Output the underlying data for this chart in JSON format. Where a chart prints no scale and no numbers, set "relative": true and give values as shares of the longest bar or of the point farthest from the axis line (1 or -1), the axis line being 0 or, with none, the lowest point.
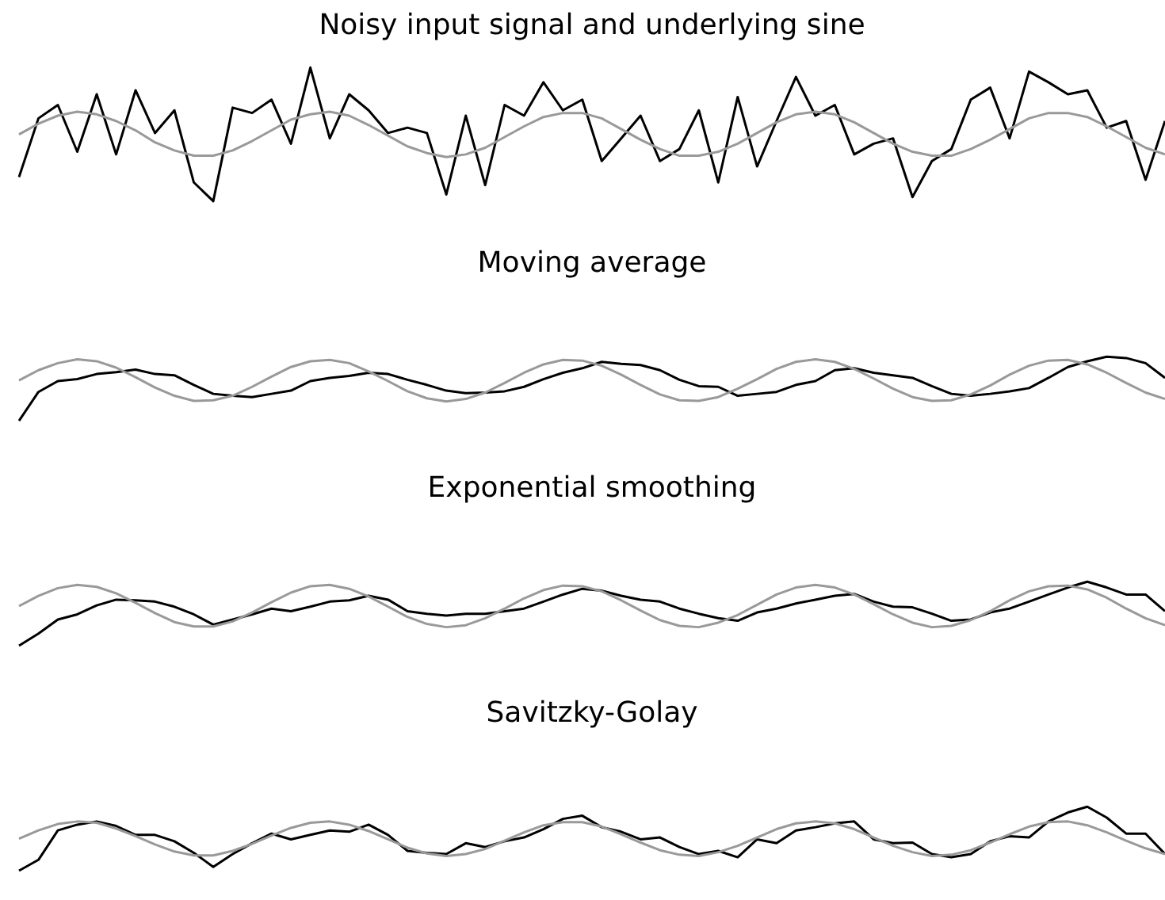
{
  "chart_data": [
    {
      "type": "line",
      "title": "Noisy input signal and underlying sine",
      "relative": true,
      "categories": [
        null,
        null,
        null,
        null,
        null,
        null,
        null,
        null,
        null,
        null,
        null,
        null,
        null,
        null,
        null,
        null,
        null,
        null,
        null,
        null,
        null,
        null,
        null,
        null,
        null,
        null,
        null,
        null,
        null,
        null,
        null,
        null,
        null,
        null,
        null,
        null,
        null,
        null,
        null,
        null,
        null,
        null,
        null,
        null,
        null,
        null,
        null,
        null,
        null,
        null,
        null,
        null,
        null,
        null,
        null,
        null,
        null,
        null,
        null,
        null
      ],
      "series": [
        {
          "color": "#999999",
          "values": [
            0.5,
            0.58,
            0.64,
            0.67,
            0.65,
            0.6,
            0.53,
            0.44,
            0.38,
            0.34,
            0.34,
            0.38,
            0.45,
            0.53,
            0.61,
            0.65,
            0.67,
            0.64,
            0.57,
            0.49,
            0.41,
            0.36,
            0.33,
            0.35,
            0.4,
            0.48,
            0.56,
            0.63,
            0.66,
            0.66,
            0.62,
            0.54,
            0.46,
            0.39,
            0.34,
            0.34,
            0.37,
            0.43,
            0.51,
            0.59,
            0.65,
            0.67,
            0.65,
            0.59,
            0.51,
            0.43,
            0.37,
            0.34,
            0.34,
            0.39,
            0.46,
            0.54,
            0.62,
            0.66,
            0.66,
            0.63,
            0.56,
            0.48,
            0.4,
            0.35
          ]
        },
        {
          "color": "#000000",
          "values": [
            0.18,
            0.62,
            0.72,
            0.37,
            0.8,
            0.35,
            0.83,
            0.51,
            0.68,
            0.14,
            0,
            0.7,
            0.66,
            0.76,
            0.43,
            1,
            0.47,
            0.8,
            0.68,
            0.51,
            0.55,
            0.51,
            0.05,
            0.64,
            0.12,
            0.72,
            0.64,
            0.89,
            0.68,
            0.76,
            0.3,
            0.47,
            0.64,
            0.3,
            0.39,
            0.68,
            0.14,
            0.78,
            0.26,
            0.6,
            0.93,
            0.64,
            0.72,
            0.35,
            0.43,
            0.47,
            0.03,
            0.3,
            0.39,
            0.76,
            0.85,
            0.47,
            0.97,
            0.89,
            0.8,
            0.83,
            0.55,
            0.6,
            0.16,
            0.6
          ]
        }
      ]
    },
    {
      "type": "line",
      "title": "Moving average",
      "relative": true,
      "categories": [
        null,
        null,
        null,
        null,
        null,
        null,
        null,
        null,
        null,
        null,
        null,
        null,
        null,
        null,
        null,
        null,
        null,
        null,
        null,
        null,
        null,
        null,
        null,
        null,
        null,
        null,
        null,
        null,
        null,
        null,
        null,
        null,
        null,
        null,
        null,
        null,
        null,
        null,
        null,
        null,
        null,
        null,
        null,
        null,
        null,
        null,
        null,
        null,
        null,
        null,
        null,
        null,
        null,
        null,
        null,
        null,
        null,
        null,
        null,
        null
      ],
      "series": [
        {
          "color": "#999999",
          "values": [
            0.63,
            0.79,
            0.9,
            0.96,
            0.93,
            0.83,
            0.68,
            0.52,
            0.39,
            0.31,
            0.32,
            0.39,
            0.53,
            0.69,
            0.84,
            0.93,
            0.95,
            0.9,
            0.77,
            0.62,
            0.46,
            0.35,
            0.3,
            0.34,
            0.44,
            0.59,
            0.75,
            0.88,
            0.95,
            0.94,
            0.86,
            0.72,
            0.56,
            0.41,
            0.32,
            0.31,
            0.37,
            0.5,
            0.65,
            0.81,
            0.92,
            0.96,
            0.92,
            0.81,
            0.66,
            0.5,
            0.37,
            0.31,
            0.32,
            0.41,
            0.55,
            0.72,
            0.86,
            0.94,
            0.95,
            0.88,
            0.75,
            0.59,
            0.44,
            0.34
          ]
        },
        {
          "color": "#000000",
          "values": [
            0,
            0.45,
            0.62,
            0.65,
            0.73,
            0.76,
            0.8,
            0.73,
            0.71,
            0.56,
            0.42,
            0.39,
            0.37,
            0.42,
            0.47,
            0.62,
            0.67,
            0.7,
            0.75,
            0.73,
            0.64,
            0.56,
            0.47,
            0.43,
            0.44,
            0.46,
            0.53,
            0.65,
            0.75,
            0.82,
            0.92,
            0.89,
            0.87,
            0.79,
            0.64,
            0.54,
            0.53,
            0.39,
            0.42,
            0.45,
            0.56,
            0.62,
            0.79,
            0.82,
            0.75,
            0.71,
            0.67,
            0.54,
            0.42,
            0.39,
            0.42,
            0.46,
            0.51,
            0.67,
            0.84,
            0.93,
            1,
            0.98,
            0.9,
            0.67
          ]
        }
      ]
    },
    {
      "type": "line",
      "title": "Exponential smoothing",
      "relative": true,
      "categories": [
        null,
        null,
        null,
        null,
        null,
        null,
        null,
        null,
        null,
        null,
        null,
        null,
        null,
        null,
        null,
        null,
        null,
        null,
        null,
        null,
        null,
        null,
        null,
        null,
        null,
        null,
        null,
        null,
        null,
        null,
        null,
        null,
        null,
        null,
        null,
        null,
        null,
        null,
        null,
        null,
        null,
        null,
        null,
        null,
        null,
        null,
        null,
        null,
        null,
        null,
        null,
        null,
        null,
        null,
        null,
        null,
        null,
        null,
        null,
        null
      ],
      "series": [
        {
          "color": "#999999",
          "values": [
            0.62,
            0.78,
            0.9,
            0.95,
            0.92,
            0.82,
            0.67,
            0.51,
            0.37,
            0.3,
            0.3,
            0.38,
            0.52,
            0.68,
            0.83,
            0.93,
            0.95,
            0.89,
            0.77,
            0.61,
            0.45,
            0.34,
            0.29,
            0.32,
            0.43,
            0.58,
            0.74,
            0.87,
            0.94,
            0.93,
            0.85,
            0.71,
            0.55,
            0.4,
            0.31,
            0.29,
            0.36,
            0.48,
            0.64,
            0.8,
            0.91,
            0.95,
            0.91,
            0.8,
            0.65,
            0.49,
            0.36,
            0.29,
            0.31,
            0.4,
            0.54,
            0.71,
            0.85,
            0.93,
            0.94,
            0.88,
            0.75,
            0.58,
            0.43,
            0.32
          ]
        },
        {
          "color": "#000000",
          "values": [
            0,
            0.19,
            0.41,
            0.49,
            0.63,
            0.72,
            0.71,
            0.69,
            0.61,
            0.49,
            0.33,
            0.41,
            0.49,
            0.58,
            0.54,
            0.61,
            0.69,
            0.71,
            0.78,
            0.72,
            0.54,
            0.5,
            0.47,
            0.5,
            0.5,
            0.54,
            0.58,
            0.69,
            0.8,
            0.89,
            0.86,
            0.78,
            0.72,
            0.69,
            0.58,
            0.5,
            0.43,
            0.39,
            0.52,
            0.58,
            0.66,
            0.72,
            0.78,
            0.81,
            0.69,
            0.61,
            0.6,
            0.5,
            0.39,
            0.41,
            0.52,
            0.58,
            0.69,
            0.8,
            0.91,
            1,
            0.91,
            0.8,
            0.8,
            0.54
          ]
        }
      ]
    },
    {
      "type": "line",
      "title": "Savitzky-Golay",
      "relative": true,
      "categories": [
        null,
        null,
        null,
        null,
        null,
        null,
        null,
        null,
        null,
        null,
        null,
        null,
        null,
        null,
        null,
        null,
        null,
        null,
        null,
        null,
        null,
        null,
        null,
        null,
        null,
        null,
        null,
        null,
        null,
        null,
        null,
        null,
        null,
        null,
        null,
        null,
        null,
        null,
        null,
        null,
        null,
        null,
        null,
        null,
        null,
        null,
        null,
        null,
        null,
        null,
        null,
        null,
        null,
        null,
        null,
        null,
        null,
        null,
        null,
        null
      ],
      "series": [
        {
          "color": "#999999",
          "values": [
            0.5,
            0.63,
            0.73,
            0.77,
            0.75,
            0.66,
            0.54,
            0.41,
            0.3,
            0.24,
            0.24,
            0.31,
            0.42,
            0.55,
            0.67,
            0.75,
            0.77,
            0.72,
            0.62,
            0.49,
            0.36,
            0.27,
            0.23,
            0.26,
            0.34,
            0.47,
            0.6,
            0.71,
            0.76,
            0.76,
            0.69,
            0.57,
            0.44,
            0.32,
            0.25,
            0.23,
            0.29,
            0.39,
            0.52,
            0.65,
            0.74,
            0.77,
            0.74,
            0.65,
            0.52,
            0.39,
            0.29,
            0.23,
            0.25,
            0.32,
            0.44,
            0.57,
            0.69,
            0.76,
            0.77,
            0.71,
            0.6,
            0.47,
            0.35,
            0.26
          ]
        },
        {
          "color": "#000000",
          "values": [
            0,
            0.17,
            0.63,
            0.72,
            0.77,
            0.7,
            0.56,
            0.56,
            0.46,
            0.28,
            0.06,
            0.26,
            0.43,
            0.58,
            0.49,
            0.56,
            0.63,
            0.61,
            0.72,
            0.56,
            0.31,
            0.28,
            0.26,
            0.43,
            0.37,
            0.46,
            0.52,
            0.65,
            0.81,
            0.86,
            0.68,
            0.61,
            0.49,
            0.52,
            0.37,
            0.26,
            0.31,
            0.21,
            0.49,
            0.43,
            0.63,
            0.68,
            0.74,
            0.77,
            0.49,
            0.43,
            0.44,
            0.26,
            0.21,
            0.26,
            0.46,
            0.54,
            0.52,
            0.77,
            0.91,
            1,
            0.83,
            0.58,
            0.58,
            0.26
          ]
        }
      ]
    }
  ]
}
